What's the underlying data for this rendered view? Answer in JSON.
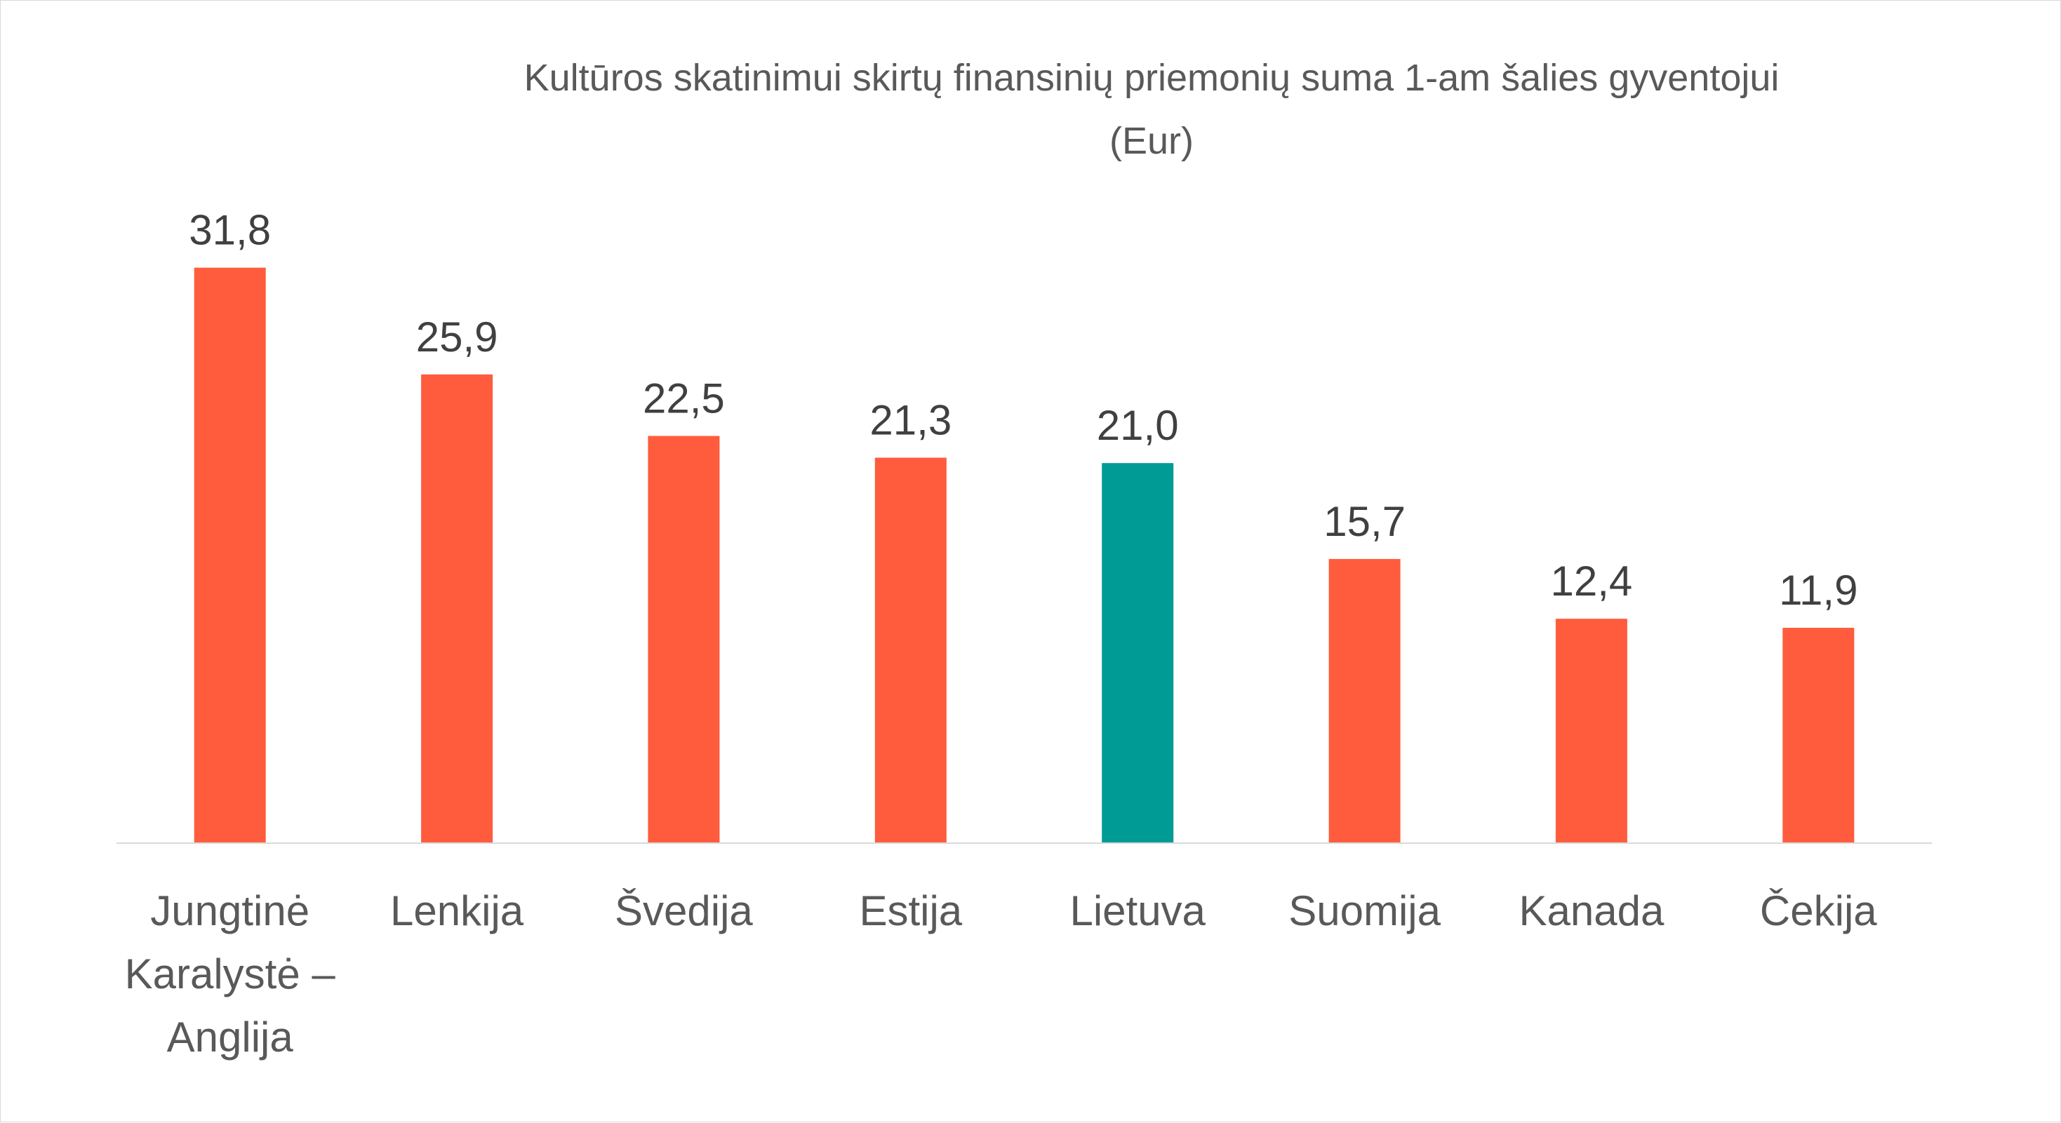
{
  "chart_data": {
    "type": "bar",
    "title_lines": [
      "Kultūros skatinimui skirtų finansinių priemonių suma 1-am šalies gyventojui",
      "(Eur)"
    ],
    "categories": [
      [
        "Jungtinė",
        "Karalystė –",
        "Anglija"
      ],
      [
        "Lenkija"
      ],
      [
        "Švedija"
      ],
      [
        "Estija"
      ],
      [
        "Lietuva"
      ],
      [
        "Suomija"
      ],
      [
        "Kanada"
      ],
      [
        "Čekija"
      ]
    ],
    "values": [
      31.8,
      25.9,
      22.5,
      21.3,
      21.0,
      15.7,
      12.4,
      11.9
    ],
    "value_labels": [
      "31,8",
      "25,9",
      "22,5",
      "21,3",
      "21,0",
      "15,7",
      "12,4",
      "11,9"
    ],
    "highlight_index": 4,
    "colors": {
      "bar": "#ff5c3e",
      "highlight": "#009b95",
      "axis": "#d9d9d9"
    },
    "ylim": [
      0,
      34
    ],
    "grid": false,
    "legend": "none"
  }
}
